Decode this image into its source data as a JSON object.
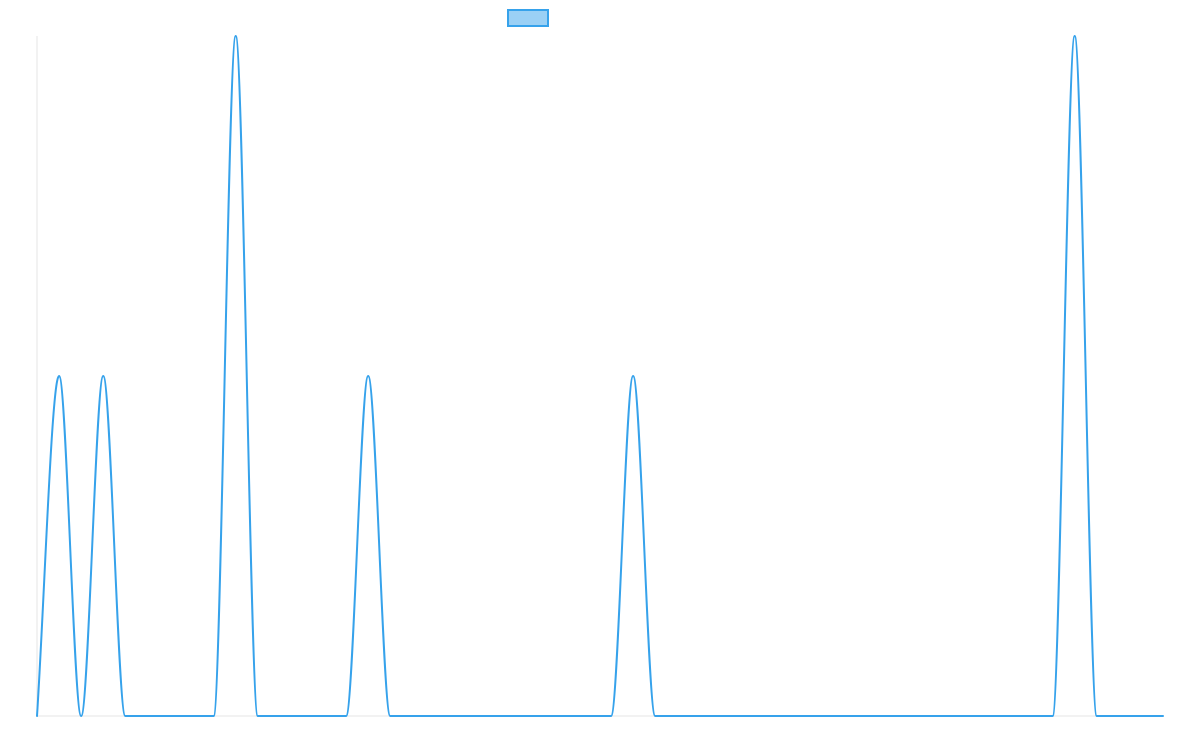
{
  "chart_data": {
    "type": "line",
    "title": "",
    "xlabel": "",
    "ylabel": "",
    "legend": {
      "placement": "top-center",
      "show_label": false
    },
    "grid": false,
    "xlim": [
      0,
      51
    ],
    "ylim": [
      0,
      2
    ],
    "x": [
      0,
      1,
      2,
      3,
      4,
      5,
      6,
      7,
      8,
      9,
      10,
      11,
      12,
      13,
      14,
      15,
      16,
      17,
      18,
      19,
      20,
      21,
      22,
      23,
      24,
      25,
      26,
      27,
      28,
      29,
      30,
      31,
      32,
      33,
      34,
      35,
      36,
      37,
      38,
      39,
      40,
      41,
      42,
      43,
      44,
      45,
      46,
      47,
      48,
      49,
      50,
      51
    ],
    "series": [
      {
        "color": "#36a2eb",
        "fill": "#9ad0f5",
        "values": [
          0,
          1,
          0,
          1,
          0,
          0,
          0,
          0,
          0,
          2,
          0,
          0,
          0,
          0,
          0,
          1,
          0,
          0,
          0,
          0,
          0,
          0,
          0,
          0,
          0,
          0,
          0,
          1,
          0,
          0,
          0,
          0,
          0,
          0,
          0,
          0,
          0,
          0,
          0,
          0,
          0,
          0,
          0,
          0,
          0,
          0,
          0,
          2,
          0,
          0,
          0,
          0
        ]
      }
    ]
  }
}
